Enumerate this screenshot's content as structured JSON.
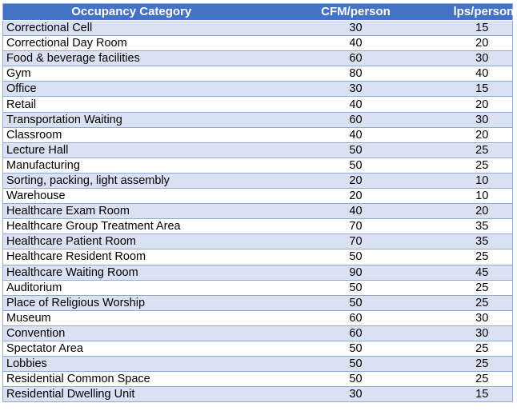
{
  "colors": {
    "header_bg": "#4472C4",
    "header_text": "#FFFFFF",
    "band_bg": "#D9E1F2",
    "row_bg": "#FFFFFF",
    "grid_border": "#8EAADB",
    "outer_border": "#8EAADB",
    "body_text": "#000000"
  },
  "chart_data": {
    "type": "table",
    "title": "",
    "legend_position": "none",
    "grid": "horizontal-only",
    "columns": [
      "Occupancy Category",
      "CFM/person",
      "lps/person"
    ],
    "rows": [
      [
        "Correctional Cell",
        30,
        15
      ],
      [
        "Correctional Day Room",
        40,
        20
      ],
      [
        "Food & beverage facilities",
        60,
        30
      ],
      [
        "Gym",
        80,
        40
      ],
      [
        "Office",
        30,
        15
      ],
      [
        "Retail",
        40,
        20
      ],
      [
        "Transportation Waiting",
        60,
        30
      ],
      [
        "Classroom",
        40,
        20
      ],
      [
        "Lecture Hall",
        50,
        25
      ],
      [
        "Manufacturing",
        50,
        25
      ],
      [
        "Sorting, packing, light assembly",
        20,
        10
      ],
      [
        "Warehouse",
        20,
        10
      ],
      [
        "Healthcare Exam Room",
        40,
        20
      ],
      [
        "Healthcare Group Treatment Area",
        70,
        35
      ],
      [
        "Healthcare Patient Room",
        70,
        35
      ],
      [
        "Healthcare Resident Room",
        50,
        25
      ],
      [
        "Healthcare Waiting Room",
        90,
        45
      ],
      [
        "Auditorium",
        50,
        25
      ],
      [
        "Place of Religious Worship",
        50,
        25
      ],
      [
        "Museum",
        60,
        30
      ],
      [
        "Convention",
        60,
        30
      ],
      [
        "Spectator Area",
        50,
        25
      ],
      [
        "Lobbies",
        50,
        25
      ],
      [
        "Residential Common Space",
        50,
        25
      ],
      [
        "Residential Dwelling Unit",
        30,
        15
      ]
    ]
  }
}
